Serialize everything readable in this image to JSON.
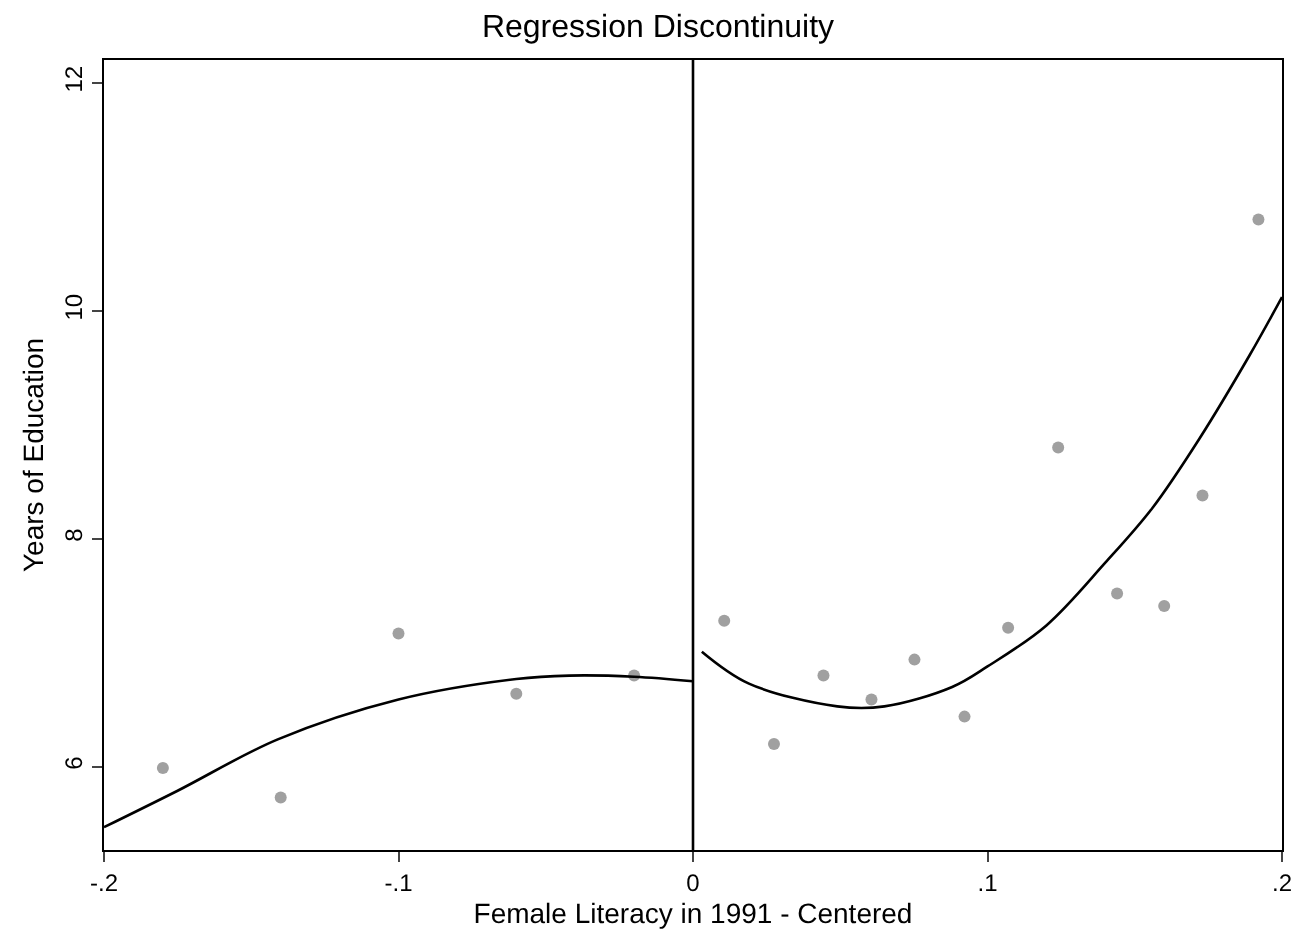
{
  "chart_data": {
    "type": "scatter",
    "title": "Regression Discontinuity",
    "xlabel": "Female Literacy in 1991 - Centered",
    "ylabel": "Years of Education",
    "xlim": [
      -0.2,
      0.2
    ],
    "ylim": [
      5.27,
      12.2
    ],
    "xticks": [
      {
        "value": -0.2,
        "label": "-.2"
      },
      {
        "value": -0.1,
        "label": "-.1"
      },
      0,
      {
        "value": 0.1,
        "label": ".1"
      },
      {
        "value": 0.2,
        "label": ".2"
      }
    ],
    "yticks": [
      6,
      8,
      10,
      12
    ],
    "grid": false,
    "ref_lines": [
      {
        "axis": "x",
        "value": 0,
        "color": "#000000"
      }
    ],
    "series": [
      {
        "marker": "circle",
        "color": "#a0a0a0",
        "x": [
          -0.18,
          -0.14,
          -0.1,
          -0.06,
          -0.02,
          0.0106,
          0.0275,
          0.0443,
          0.0606,
          0.0752,
          0.0922,
          0.107,
          0.124,
          0.144,
          0.16,
          0.173,
          0.192
        ],
        "values": [
          5.99,
          5.73,
          7.17,
          6.64,
          6.8,
          7.28,
          6.2,
          6.8,
          6.59,
          6.94,
          6.44,
          7.22,
          8.8,
          7.52,
          7.41,
          8.38,
          10.8
        ]
      },
      {
        "type": "line",
        "marker": "none",
        "color": "#000000",
        "x": [
          -0.2,
          -0.175,
          -0.141,
          -0.1,
          -0.06,
          -0.042,
          -0.02,
          0
        ],
        "values": [
          5.47,
          5.79,
          6.24,
          6.59,
          6.77,
          6.8,
          6.79,
          6.75
        ]
      },
      {
        "type": "line",
        "marker": "none",
        "color": "#000000",
        "x": [
          0.003,
          0.019,
          0.049,
          0.065,
          0.088,
          0.1,
          0.12,
          0.14,
          0.156,
          0.172,
          0.189,
          0.2
        ],
        "values": [
          7.01,
          6.73,
          6.53,
          6.53,
          6.7,
          6.88,
          7.24,
          7.79,
          8.27,
          8.88,
          9.61,
          10.12
        ]
      }
    ]
  }
}
